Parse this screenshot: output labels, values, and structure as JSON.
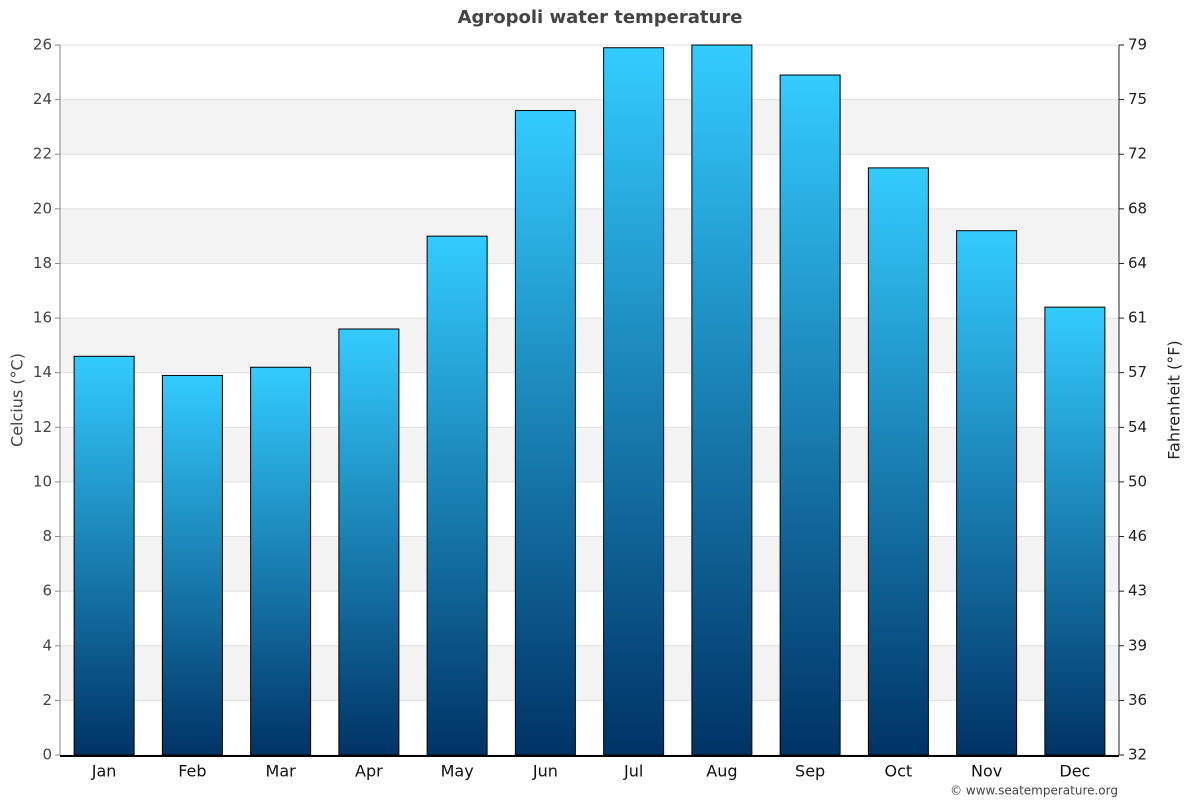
{
  "chart_data": {
    "type": "bar",
    "title": "Agropoli water temperature",
    "categories": [
      "Jan",
      "Feb",
      "Mar",
      "Apr",
      "May",
      "Jun",
      "Jul",
      "Aug",
      "Sep",
      "Oct",
      "Nov",
      "Dec"
    ],
    "values": [
      14.6,
      13.9,
      14.2,
      15.6,
      19.0,
      23.6,
      25.9,
      26.0,
      24.9,
      21.5,
      19.2,
      16.4
    ],
    "gradient": [
      "#33ccff",
      "#003366"
    ],
    "y_label": "Celcius (°C)",
    "y2_label": "Fahrenheit (°F)",
    "ylim": [
      0,
      26
    ],
    "yticks": [
      0,
      2,
      4,
      6,
      8,
      10,
      12,
      14,
      16,
      18,
      20,
      22,
      24,
      26
    ],
    "y2lim": [
      32,
      78.8
    ],
    "y2ticks": [
      32,
      {
        "value": 35.6,
        "label": "36"
      },
      {
        "value": 39.2,
        "label": "39"
      },
      {
        "value": 42.8,
        "label": "43"
      },
      {
        "value": 46.4,
        "label": "46"
      },
      50,
      {
        "value": 53.6,
        "label": "54"
      },
      {
        "value": 57.2,
        "label": "57"
      },
      {
        "value": 60.8,
        "label": "61"
      },
      {
        "value": 64.4,
        "label": "64"
      },
      68,
      {
        "value": 71.6,
        "label": "72"
      },
      {
        "value": 75.2,
        "label": "75"
      },
      {
        "value": 78.8,
        "label": "79"
      }
    ],
    "grid": true,
    "banded": true,
    "credit": "© www.seatemperature.org"
  }
}
